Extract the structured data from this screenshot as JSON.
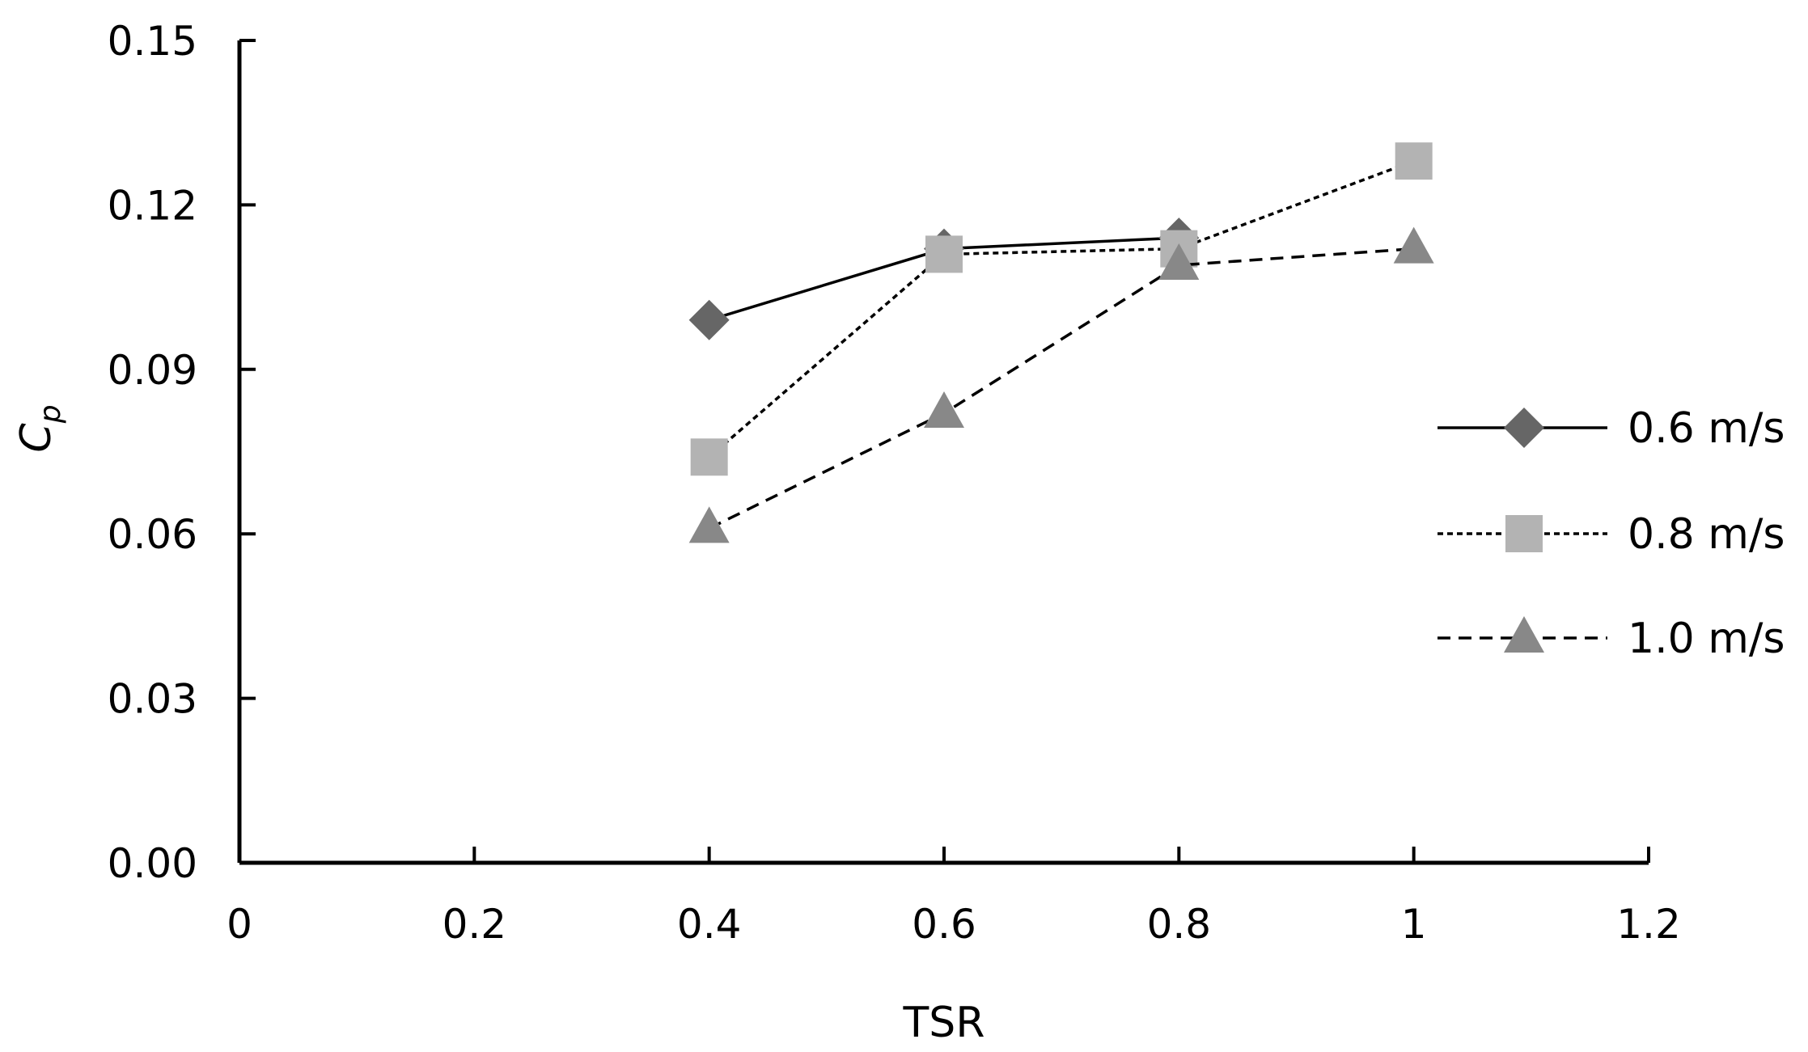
{
  "chart_data": {
    "type": "line",
    "xlabel": "TSR",
    "ylabel_main": "C",
    "ylabel_sub": "p",
    "xlim": [
      0,
      1.2
    ],
    "ylim": [
      0,
      0.15
    ],
    "xticks": [
      0,
      0.2,
      0.4,
      0.6,
      0.8,
      1.0,
      1.2
    ],
    "xtick_labels": [
      "0",
      "0.2",
      "0.4",
      "0.6",
      "0.8",
      "1",
      "1.2"
    ],
    "yticks": [
      0,
      0.03,
      0.06,
      0.09,
      0.12,
      0.15
    ],
    "ytick_labels": [
      "0.00",
      "0.03",
      "0.06",
      "0.09",
      "0.12",
      "0.15"
    ],
    "grid": false,
    "legend_position": "right",
    "series": [
      {
        "name": "0.6 m/s",
        "marker": "diamond",
        "line_style": "solid",
        "color": "#666666",
        "line_color": "#000000",
        "x": [
          0.4,
          0.6,
          0.8
        ],
        "y": [
          0.099,
          0.112,
          0.114
        ]
      },
      {
        "name": "0.8 m/s",
        "marker": "square",
        "line_style": "dotted",
        "color": "#b3b3b3",
        "line_color": "#000000",
        "x": [
          0.4,
          0.6,
          0.8,
          1.0
        ],
        "y": [
          0.074,
          0.111,
          0.112,
          0.128
        ]
      },
      {
        "name": "1.0 m/s",
        "marker": "triangle",
        "line_style": "dashed",
        "color": "#888888",
        "line_color": "#000000",
        "x": [
          0.4,
          0.6,
          0.8,
          1.0
        ],
        "y": [
          0.061,
          0.082,
          0.109,
          0.112
        ]
      }
    ]
  }
}
